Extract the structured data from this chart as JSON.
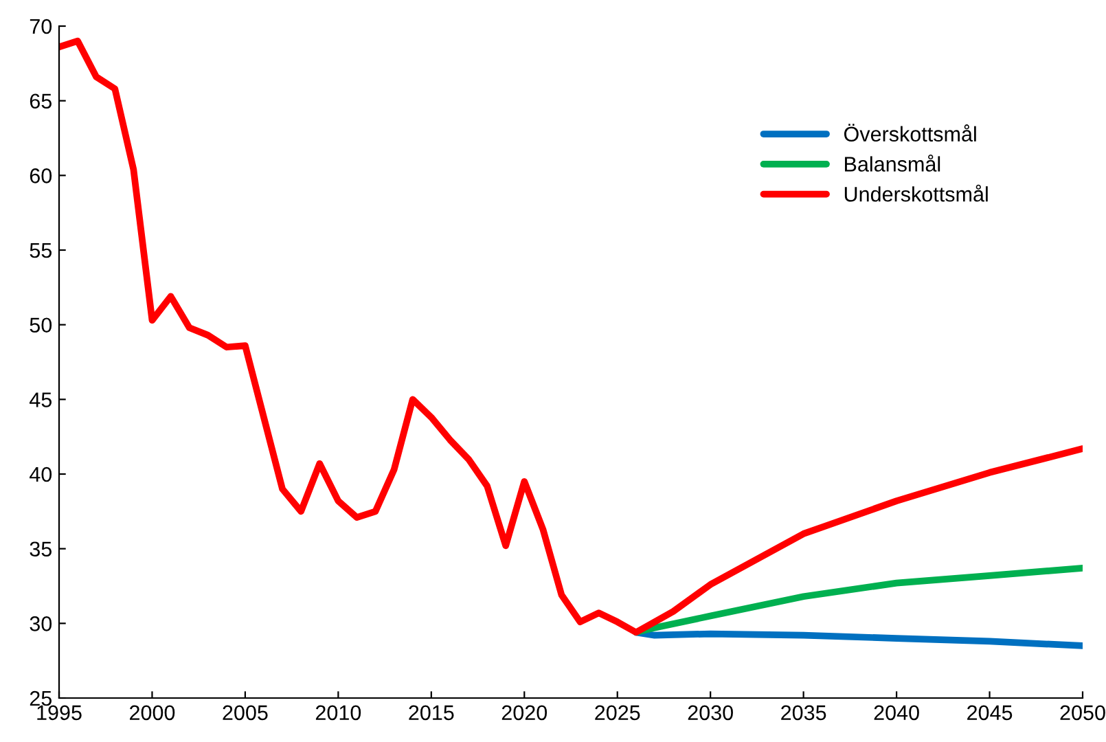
{
  "chart_data": {
    "type": "line",
    "xlim": [
      1995,
      2050
    ],
    "xticks": [
      1995,
      2000,
      2005,
      2010,
      2015,
      2020,
      2025,
      2030,
      2035,
      2040,
      2045,
      2050
    ],
    "ylim": [
      25,
      70
    ],
    "yticks": [
      25,
      30,
      35,
      40,
      45,
      50,
      55,
      60,
      65,
      70
    ],
    "grid": false,
    "legend": "top right",
    "marker": "none",
    "line_style": "solid",
    "series": [
      {
        "name": "Överskottsmål",
        "color": "#0070c0",
        "x": [
          2026,
          2027,
          2030,
          2035,
          2040,
          2045,
          2050
        ],
        "values": [
          29.4,
          29.2,
          29.3,
          29.2,
          29.0,
          28.8,
          28.5
        ]
      },
      {
        "name": "Balansmål",
        "color": "#00b050",
        "x": [
          2026,
          2027,
          2030,
          2035,
          2040,
          2045,
          2050
        ],
        "values": [
          29.4,
          29.7,
          30.5,
          31.8,
          32.7,
          33.2,
          33.7
        ]
      },
      {
        "name": "Underskottsmål",
        "color": "#ff0000",
        "x": [
          1995,
          1996,
          1997,
          1998,
          1999,
          2000,
          2001,
          2002,
          2003,
          2004,
          2005,
          2006,
          2007,
          2008,
          2009,
          2010,
          2011,
          2012,
          2013,
          2014,
          2015,
          2016,
          2017,
          2018,
          2019,
          2020,
          2021,
          2022,
          2023,
          2024,
          2025,
          2026,
          2027,
          2028,
          2030,
          2035,
          2040,
          2045,
          2050
        ],
        "values": [
          68.6,
          69.0,
          66.6,
          65.8,
          60.4,
          50.3,
          51.9,
          49.8,
          49.3,
          48.5,
          48.6,
          43.8,
          39.0,
          37.5,
          40.7,
          38.2,
          37.1,
          37.5,
          40.3,
          45.0,
          43.8,
          42.3,
          41.0,
          39.2,
          35.2,
          39.5,
          36.3,
          31.9,
          30.1,
          30.7,
          30.1,
          29.4,
          30.1,
          30.8,
          32.6,
          36.0,
          38.2,
          40.1,
          41.7
        ]
      }
    ]
  }
}
